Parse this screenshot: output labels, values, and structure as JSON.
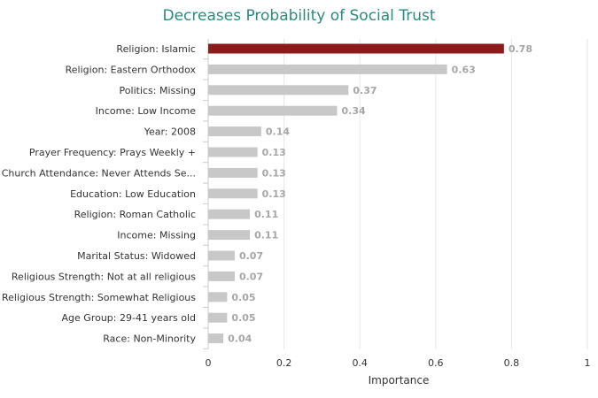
{
  "chart_data": {
    "type": "bar",
    "orientation": "horizontal",
    "title": "Decreases Probability of Social Trust",
    "xlabel": "Importance",
    "ylabel": "",
    "xlim": [
      0,
      1
    ],
    "x_ticks": [
      "0",
      "0.2",
      "0.4",
      "0.6",
      "0.8",
      "1"
    ],
    "grid": "vertical gridlines",
    "categories": [
      "Religion: Islamic",
      "Religion: Eastern Orthodox",
      "Politics: Missing",
      "Income: Low Income",
      "Year: 2008",
      "Prayer Frequency: Prays Weekly +",
      "Church Attendance: Never Attends Se...",
      "Education: Low Education",
      "Religion: Roman Catholic",
      "Income: Missing",
      "Marital Status: Widowed",
      "Religious Strength: Not at all religious",
      "Religious Strength: Somewhat Religious",
      "Age Group: 29-41 years old",
      "Race: Non-Minority"
    ],
    "values": [
      0.78,
      0.63,
      0.37,
      0.34,
      0.14,
      0.13,
      0.13,
      0.13,
      0.11,
      0.11,
      0.07,
      0.07,
      0.05,
      0.05,
      0.04
    ],
    "value_labels": [
      "0.78",
      "0.63",
      "0.37",
      "0.34",
      "0.14",
      "0.13",
      "0.13",
      "0.13",
      "0.11",
      "0.11",
      "0.07",
      "0.07",
      "0.05",
      "0.05",
      "0.04"
    ],
    "colors": {
      "highlight": "#8b1a1a",
      "bar": "#c8c8c8",
      "title": "#2a8a80",
      "grid": "#e6e6e6",
      "value_label": "#a6a6a6"
    },
    "highlight_index": 0
  }
}
